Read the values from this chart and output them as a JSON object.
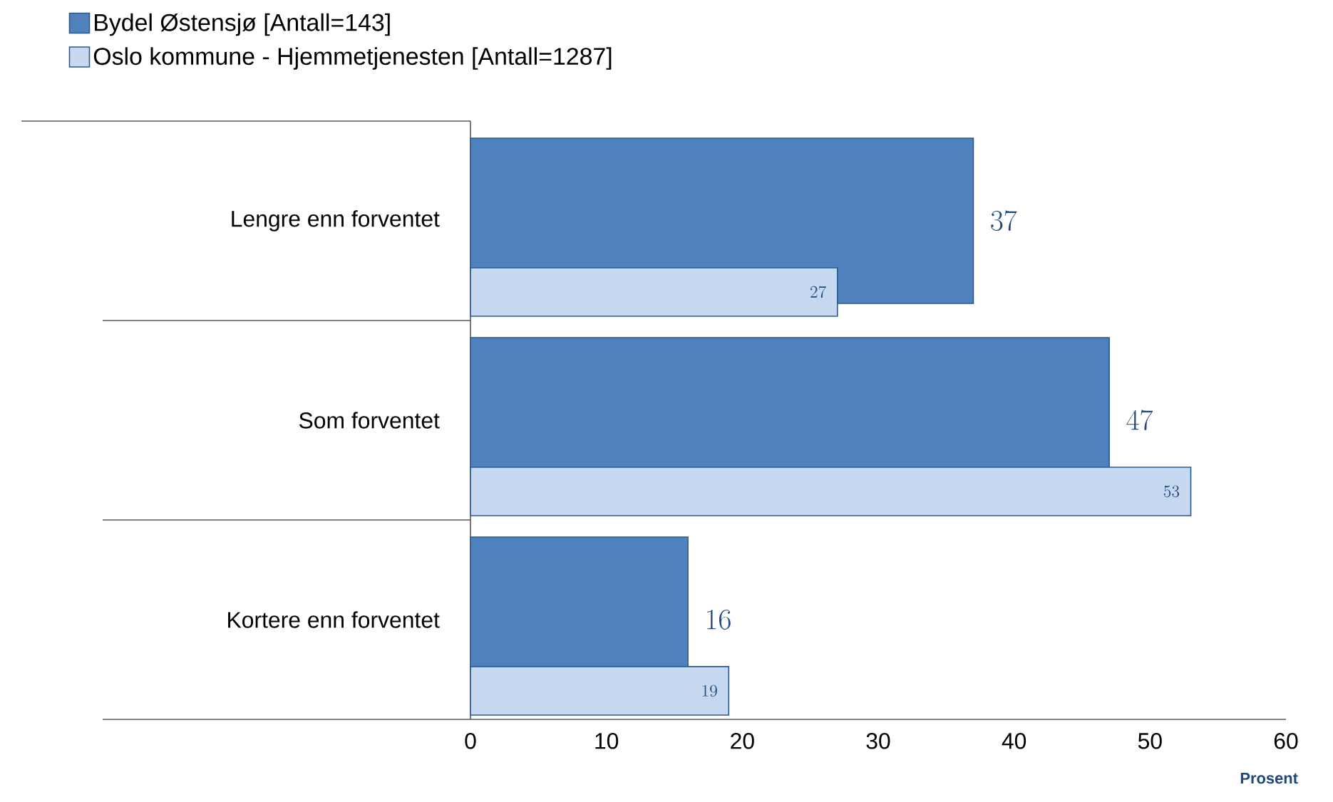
{
  "chart_data": {
    "type": "bar",
    "orientation": "horizontal",
    "xlabel": "Prosent",
    "categories": [
      "Lengre enn forventet",
      "Som forventet",
      "Kortere enn forventet"
    ],
    "series": [
      {
        "name": "Bydel Østensjø    [Antall=143]",
        "color": "#4f81bd",
        "values": [
          37,
          47,
          16
        ]
      },
      {
        "name": "Oslo kommune - Hjemmetjenesten    [Antall=1287]",
        "color": "#c6d9f1",
        "values": [
          27,
          53,
          19
        ]
      }
    ],
    "xlim": [
      0,
      60
    ],
    "xticks": [
      0,
      10,
      20,
      30,
      40,
      50,
      60
    ],
    "data_labels": true,
    "legend": "top left",
    "grid": false
  }
}
